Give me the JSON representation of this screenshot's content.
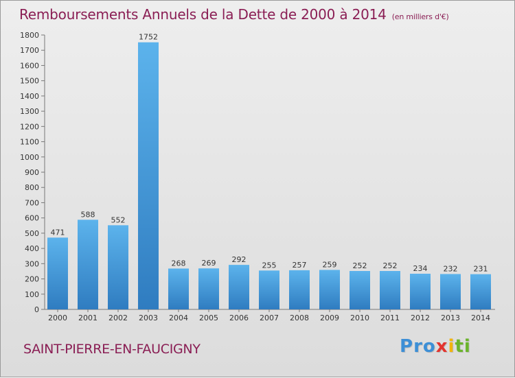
{
  "chart_data": {
    "type": "bar",
    "title": "Remboursements Annuels de la Dette de 2000 à 2014",
    "subtitle": "(en milliers d'€)",
    "categories": [
      "2000",
      "2001",
      "2002",
      "2003",
      "2004",
      "2005",
      "2006",
      "2007",
      "2008",
      "2009",
      "2010",
      "2011",
      "2012",
      "2013",
      "2014"
    ],
    "values": [
      471,
      588,
      552,
      1752,
      268,
      269,
      292,
      255,
      257,
      259,
      252,
      252,
      234,
      232,
      231
    ],
    "ylim": [
      0,
      1800
    ],
    "yticks": [
      0,
      100,
      200,
      300,
      400,
      500,
      600,
      700,
      800,
      900,
      1000,
      1100,
      1200,
      1300,
      1400,
      1500,
      1600,
      1700,
      1800
    ],
    "grid": false,
    "bar_color": "#4da3e0"
  },
  "footer": {
    "city": "SAINT-PIERRE-EN-FAUCIGNY",
    "logo_letters": [
      {
        "char": "P",
        "color": "#3d8fd6"
      },
      {
        "char": "r",
        "color": "#3d8fd6"
      },
      {
        "char": "o",
        "color": "#3d8fd6"
      },
      {
        "char": "x",
        "color": "#e3342f"
      },
      {
        "char": "i",
        "color": "#f2b40d"
      },
      {
        "char": "t",
        "color": "#6bb42c"
      },
      {
        "char": "i",
        "color": "#6bb42c"
      }
    ]
  }
}
